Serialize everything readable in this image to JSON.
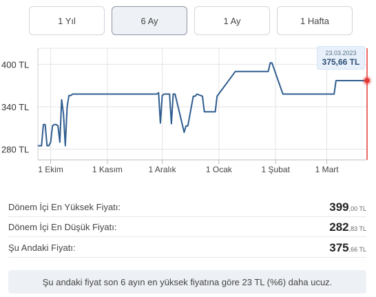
{
  "period_tabs": [
    {
      "label": "1 Yıl",
      "active": false
    },
    {
      "label": "6 Ay",
      "active": true
    },
    {
      "label": "1 Ay",
      "active": false
    },
    {
      "label": "1 Hafta",
      "active": false
    }
  ],
  "tooltip": {
    "date": "23.03.2023",
    "price": "375,66 TL"
  },
  "chart_data": {
    "type": "line",
    "y_ticks": [
      "400 TL",
      "340 TL",
      "280 TL"
    ],
    "y_tick_values": [
      400,
      340,
      280
    ],
    "ylim": [
      265,
      415
    ],
    "x_ticks": [
      "1 Ekim",
      "1 Kasım",
      "1 Aralık",
      "1 Ocak",
      "1 Şubat",
      "1 Mart"
    ],
    "x_tick_dates": [
      "2022-10-01",
      "2022-11-01",
      "2022-12-01",
      "2023-01-01",
      "2023-02-01",
      "2023-03-01"
    ],
    "grid": true,
    "line_color": "#2e5c8f",
    "marker_color": "#e53935",
    "series": [
      {
        "x": [
          "2022-09-24",
          "2022-09-26",
          "2022-09-27",
          "2022-09-28",
          "2022-09-29",
          "2022-09-30",
          "2022-10-01",
          "2022-10-02",
          "2022-10-03",
          "2022-10-04",
          "2022-10-05",
          "2022-10-06",
          "2022-10-07",
          "2022-10-08",
          "2022-10-09",
          "2022-10-10",
          "2022-10-11",
          "2022-10-12",
          "2022-10-13",
          "2022-10-14",
          "2022-10-15",
          "2022-10-20",
          "2022-10-31",
          "2022-11-05",
          "2022-11-06",
          "2022-11-07",
          "2022-11-15",
          "2022-11-20",
          "2022-11-28",
          "2022-11-29",
          "2022-11-30",
          "2022-12-01",
          "2022-12-02",
          "2022-12-03",
          "2022-12-04",
          "2022-12-05",
          "2022-12-06",
          "2022-12-07",
          "2022-12-08",
          "2022-12-13",
          "2022-12-14",
          "2022-12-15",
          "2022-12-18",
          "2022-12-19",
          "2022-12-20",
          "2022-12-23",
          "2022-12-24",
          "2022-12-30",
          "2022-12-31",
          "2023-01-10",
          "2023-01-20",
          "2023-01-26",
          "2023-01-27",
          "2023-01-28",
          "2023-01-29",
          "2023-01-30",
          "2023-02-05",
          "2023-02-06",
          "2023-02-07",
          "2023-02-20",
          "2023-03-01",
          "2023-03-05",
          "2023-03-06",
          "2023-03-23"
        ],
        "y": [
          285,
          285,
          315,
          315,
          285,
          285,
          290,
          313,
          315,
          315,
          313,
          290,
          350,
          330,
          285,
          340,
          356,
          356,
          358,
          358,
          358,
          358,
          358,
          358,
          358,
          358,
          358,
          358,
          358,
          360,
          317,
          356,
          358,
          358,
          358,
          358,
          316,
          358,
          358,
          304,
          313,
          313,
          355,
          355,
          358,
          355,
          333,
          333,
          355,
          390,
          390,
          390,
          390,
          390,
          402,
          402,
          358,
          358,
          358,
          358,
          358,
          358,
          377,
          377
        ]
      }
    ]
  },
  "stats": [
    {
      "label": "Dönem İçi En Yüksek Fiyatı:",
      "int": "399",
      "dec": ",00 TL"
    },
    {
      "label": "Dönem İçi En Düşük Fiyatı:",
      "int": "282",
      "dec": ",83 TL"
    },
    {
      "label": "Şu Andaki Fiyatı:",
      "int": "375",
      "dec": ",66 TL"
    }
  ],
  "info_text": "Şu andaki fiyat son 6 ayın en yüksek fiyatına göre 23 TL (%6) daha ucuz."
}
